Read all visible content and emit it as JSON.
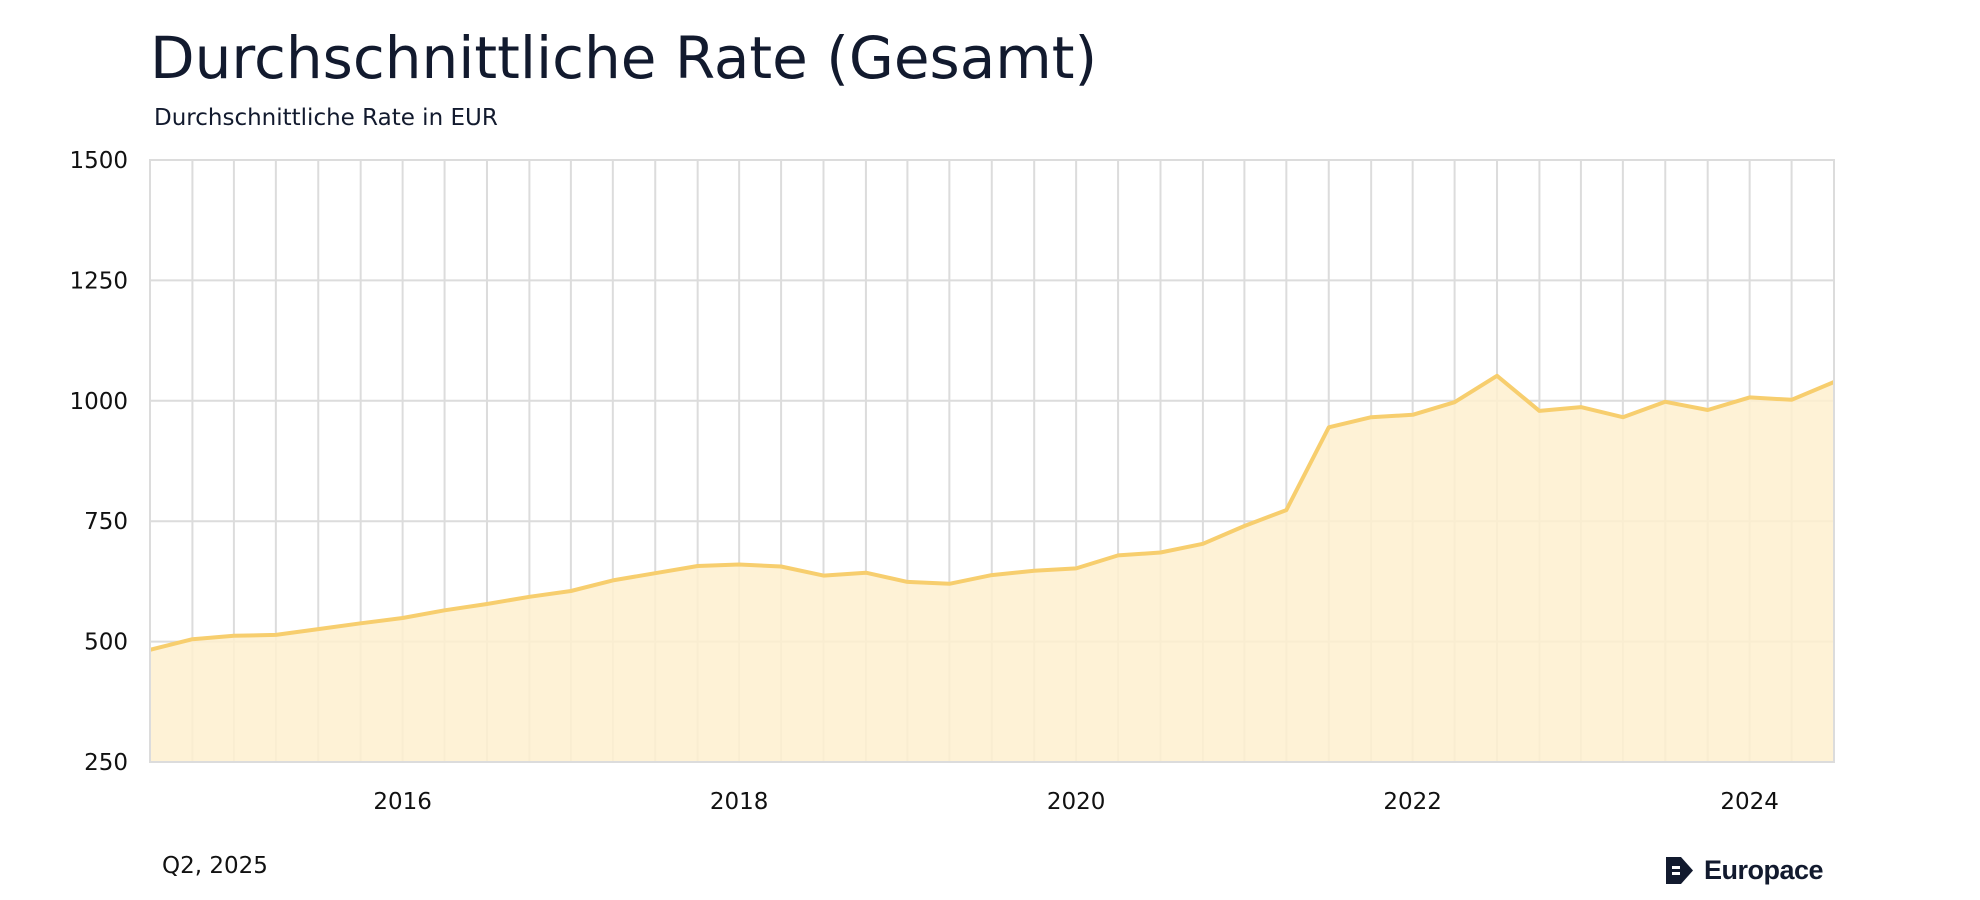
{
  "header": {
    "title": "Durchschnittliche Rate (Gesamt)",
    "subtitle": "Durchschnittliche Rate in EUR"
  },
  "footer": {
    "date": "Q2, 2025",
    "brand": "Europace",
    "brand_icon": "europace-e-logo-icon"
  },
  "colors": {
    "line": "#f7ce6e",
    "fill": "#fef0cf",
    "grid": "#dcdcdc",
    "text": "#121a2e"
  },
  "chart_data": {
    "type": "area",
    "title": "Durchschnittliche Rate (Gesamt)",
    "subtitle": "Durchschnittliche Rate in EUR",
    "xlabel": "",
    "ylabel": "",
    "ylim": [
      250,
      1500
    ],
    "xlim": [
      "2014-10-01",
      "2024-10-01"
    ],
    "yticks": [
      1500,
      1250,
      1000,
      750,
      500,
      250
    ],
    "xticks": [
      {
        "label": "2016",
        "date": "2016-04-01"
      },
      {
        "label": "2018",
        "date": "2018-04-01"
      },
      {
        "label": "2020",
        "date": "2020-04-01"
      },
      {
        "label": "2022",
        "date": "2022-04-01"
      },
      {
        "label": "2024",
        "date": "2024-04-01"
      }
    ],
    "grid": true,
    "legend": "none",
    "x": [
      "2014-10-01",
      "2015-01-01",
      "2015-04-01",
      "2015-07-01",
      "2015-10-01",
      "2016-01-01",
      "2016-04-01",
      "2016-07-01",
      "2016-10-01",
      "2017-01-01",
      "2017-04-01",
      "2017-07-01",
      "2017-10-01",
      "2018-01-01",
      "2018-04-01",
      "2018-07-01",
      "2018-10-01",
      "2019-01-01",
      "2019-04-01",
      "2019-07-01",
      "2019-10-01",
      "2020-01-01",
      "2020-04-01",
      "2020-07-01",
      "2020-10-01",
      "2021-01-01",
      "2021-04-01",
      "2021-07-01",
      "2021-10-01",
      "2022-01-01",
      "2022-04-01",
      "2022-07-01",
      "2022-10-01",
      "2023-01-01",
      "2023-04-01",
      "2023-07-01",
      "2023-10-01",
      "2024-01-01",
      "2024-04-01",
      "2024-07-01",
      "2024-10-01"
    ],
    "series": [
      {
        "values": [
          483,
          505,
          512,
          514,
          526,
          538,
          549,
          565,
          578,
          593,
          605,
          627,
          642,
          657,
          660,
          656,
          637,
          643,
          624,
          620,
          638,
          647,
          652,
          679,
          685,
          703,
          740,
          773,
          945,
          966,
          971,
          997,
          1052,
          979,
          987,
          966,
          998,
          981,
          1007,
          1002,
          1039
        ]
      }
    ]
  }
}
